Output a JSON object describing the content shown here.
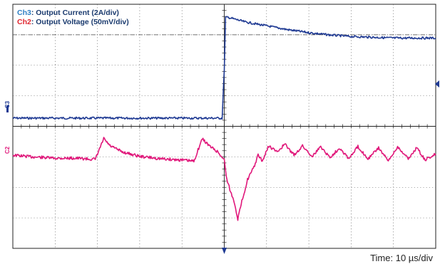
{
  "legend": [
    {
      "channel": "Ch3",
      "description": ": Output Current (2A/div)",
      "color": "#2e7fc4"
    },
    {
      "channel": "Ch2",
      "description": ": Output Voltage (50mV/div)",
      "color": "#e0262f"
    }
  ],
  "timebase_label": "Time: 10 µs/div",
  "channel_markers": {
    "ch3": "C3",
    "ch2": "C2"
  },
  "colors": {
    "current_trace": "#1f3a93",
    "voltage_trace": "#e0177a",
    "grid": "#444444",
    "description_text": "#1a3a6e"
  },
  "chart_data": {
    "type": "line",
    "title": "",
    "grid": {
      "divisions_x": 10,
      "divisions_y": 8,
      "visible": true
    },
    "x_unit": "µs",
    "x_range": [
      0,
      100
    ],
    "series": [
      {
        "name": "Ch3",
        "y_unit": "A",
        "volts_per_div_equivalent": "2A/div",
        "points": [
          [
            0,
            0.0
          ],
          [
            49.5,
            0.0
          ],
          [
            50.0,
            3.2
          ],
          [
            50.3,
            6.6
          ],
          [
            51.0,
            6.6
          ],
          [
            55,
            6.3
          ],
          [
            60,
            6.05
          ],
          [
            65,
            5.8
          ],
          [
            70,
            5.6
          ],
          [
            75,
            5.45
          ],
          [
            80,
            5.35
          ],
          [
            85,
            5.3
          ],
          [
            90,
            5.25
          ],
          [
            95,
            5.25
          ],
          [
            100,
            5.25
          ]
        ]
      },
      {
        "name": "Ch2",
        "y_unit": "mV",
        "volts_per_div_equivalent": "50mV/div",
        "points": [
          [
            0,
            0
          ],
          [
            5,
            -3
          ],
          [
            10,
            -5
          ],
          [
            15,
            -5
          ],
          [
            19.5,
            -7
          ],
          [
            21.5,
            27
          ],
          [
            23,
            15
          ],
          [
            26,
            5
          ],
          [
            30,
            -2
          ],
          [
            35,
            -6
          ],
          [
            40,
            -8
          ],
          [
            42.8,
            -10
          ],
          [
            44.8,
            27
          ],
          [
            46.5,
            15
          ],
          [
            48.5,
            5
          ],
          [
            50,
            -8
          ],
          [
            50.6,
            -40
          ],
          [
            51.5,
            -60
          ],
          [
            52.5,
            -80
          ],
          [
            53.2,
            -105
          ],
          [
            54,
            -80
          ],
          [
            55.5,
            -40
          ],
          [
            57,
            -20
          ],
          [
            58,
            0
          ],
          [
            59,
            -10
          ],
          [
            60.5,
            15
          ],
          [
            62.5,
            5
          ],
          [
            64.3,
            18
          ],
          [
            66.5,
            0
          ],
          [
            68.5,
            15
          ],
          [
            70.8,
            -2
          ],
          [
            72.8,
            14
          ],
          [
            75,
            -4
          ],
          [
            77.3,
            12
          ],
          [
            79.5,
            -6
          ],
          [
            81.6,
            14
          ],
          [
            84,
            -6
          ],
          [
            86.5,
            12
          ],
          [
            88.8,
            -10
          ],
          [
            91,
            14
          ],
          [
            93.5,
            -6
          ],
          [
            95.5,
            12
          ],
          [
            97.5,
            -8
          ],
          [
            100,
            2
          ]
        ]
      }
    ]
  }
}
